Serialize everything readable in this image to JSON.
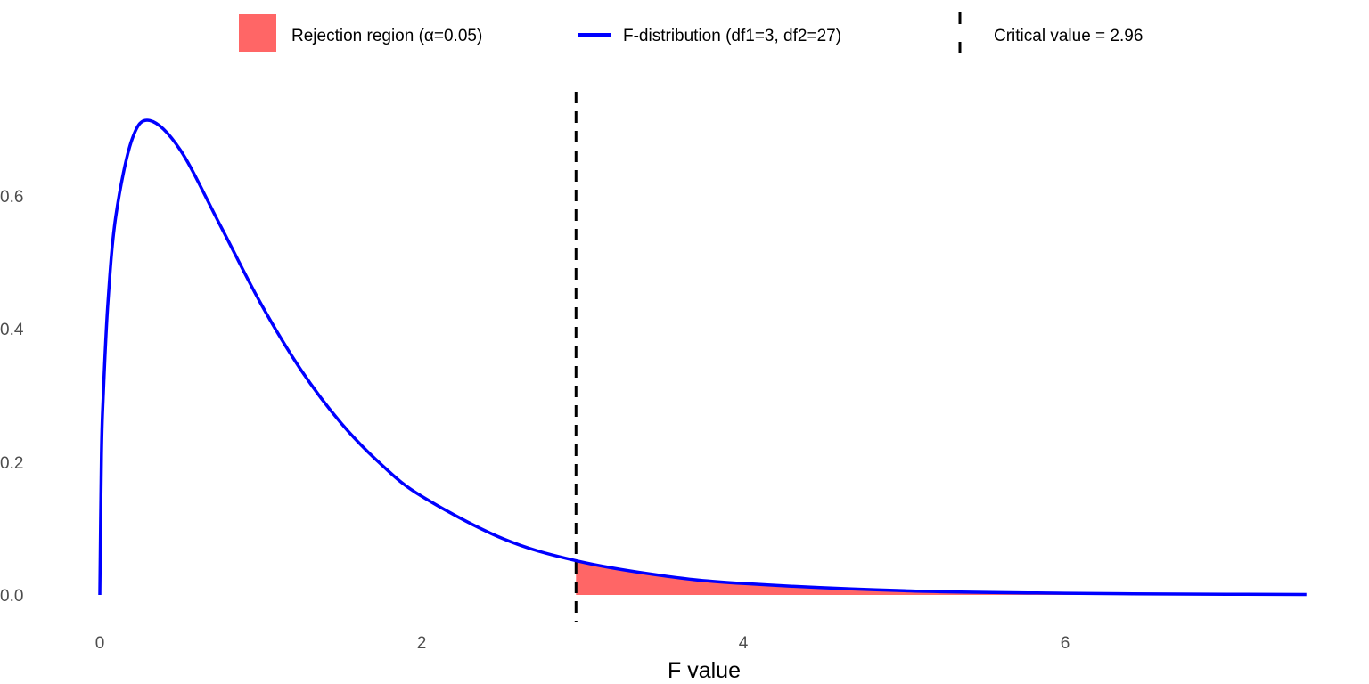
{
  "chart_data": {
    "type": "area",
    "title": "",
    "xlabel": "F value",
    "ylabel": "",
    "xlim": [
      0,
      7.5
    ],
    "ylim": [
      0,
      0.72
    ],
    "grid": false,
    "legend_position": "top",
    "x_ticks": [
      0,
      2,
      4,
      6
    ],
    "x_tick_labels": [
      "0",
      "2",
      "4",
      "6"
    ],
    "y_ticks": [
      0,
      0.2,
      0.4,
      0.6
    ],
    "y_tick_labels": [
      "0.0",
      "0.2",
      "0.4",
      "0.6"
    ],
    "series": [
      {
        "name": "F-distribution (df1=3, df2=27)",
        "kind": "line",
        "color": "#0000FF",
        "x": [
          0,
          0.01,
          0.02,
          0.05,
          0.1,
          0.2,
          0.31,
          0.5,
          0.75,
          1,
          1.25,
          1.5,
          1.75,
          2,
          2.5,
          2.96,
          3.5,
          4,
          5,
          6,
          7,
          7.5
        ],
        "y": [
          0,
          0.2095,
          0.2914,
          0.4383,
          0.5707,
          0.685,
          0.7136,
          0.6693,
          0.5552,
          0.4386,
          0.3386,
          0.2584,
          0.1961,
          0.1485,
          0.0852,
          0.0515,
          0.0289,
          0.0172,
          0.0063,
          0.0025,
          0.001,
          0.0007
        ]
      },
      {
        "name": "Rejection region (α=0.05)",
        "kind": "area",
        "color": "#FF6666",
        "x_from": 2.96,
        "x_to": 7.5
      },
      {
        "name": "Critical value = 2.96",
        "kind": "vline",
        "color": "#000000",
        "x": 2.96,
        "linestyle": "dashed"
      }
    ]
  }
}
